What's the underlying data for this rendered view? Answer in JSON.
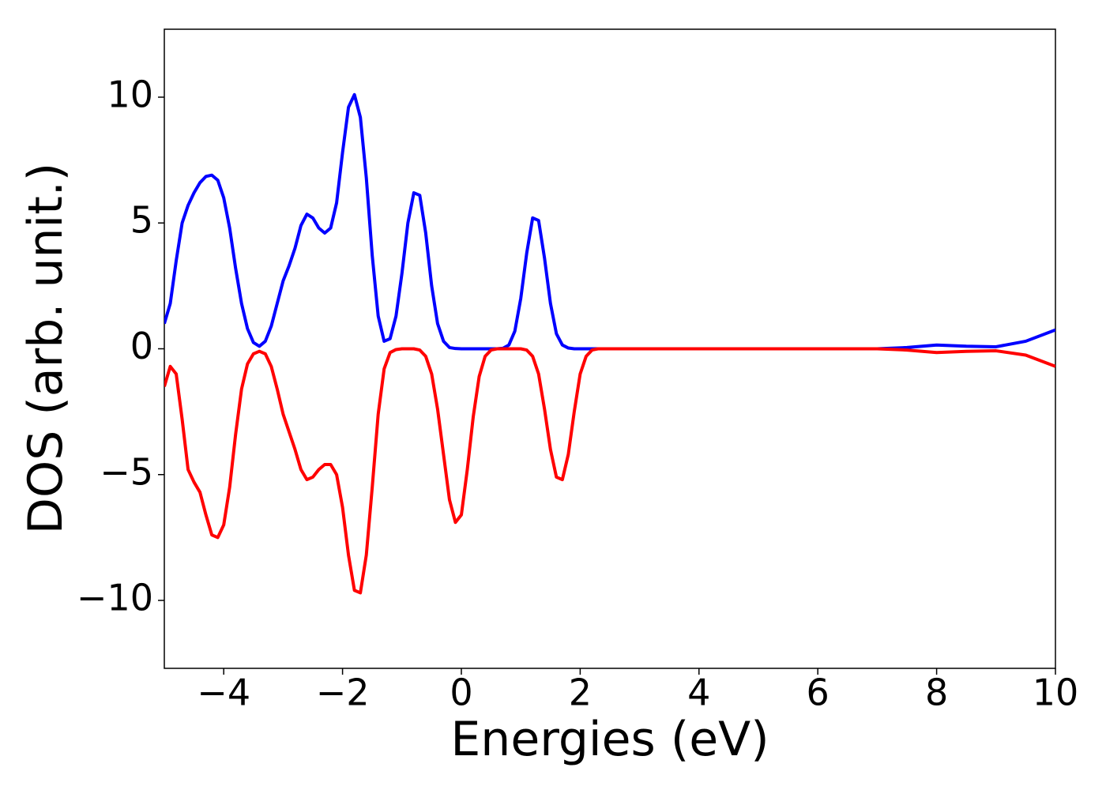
{
  "chart_data": {
    "type": "line",
    "xlabel": "Energies (eV)",
    "ylabel": "DOS (arb. unit.)",
    "x": [
      -5,
      -4.9,
      -4.8,
      -4.7,
      -4.6,
      -4.5,
      -4.4,
      -4.3,
      -4.2,
      -4.1,
      -4,
      -3.9,
      -3.8,
      -3.7,
      -3.6,
      -3.5,
      -3.4,
      -3.3,
      -3.2,
      -3.1,
      -3,
      -2.9,
      -2.8,
      -2.7,
      -2.6,
      -2.5,
      -2.4,
      -2.3,
      -2.2,
      -2.1,
      -2,
      -1.9,
      -1.8,
      -1.7,
      -1.6,
      -1.5,
      -1.4,
      -1.3,
      -1.2,
      -1.1,
      -1,
      -0.9,
      -0.8,
      -0.7,
      -0.6,
      -0.5,
      -0.4,
      -0.3,
      -0.2,
      -0.1,
      0,
      0.1,
      0.2,
      0.3,
      0.4,
      0.5,
      0.6,
      0.7,
      0.8,
      0.9,
      1,
      1.1,
      1.2,
      1.3,
      1.4,
      1.5,
      1.6,
      1.7,
      1.8,
      1.9,
      2,
      2.1,
      2.2,
      2.3,
      2.4,
      2.5,
      3,
      3.5,
      4,
      4.5,
      5,
      5.5,
      6,
      6.5,
      7,
      7.5,
      8,
      8.5,
      9,
      9.5,
      10
    ],
    "series": [
      {
        "color": "#0000ff",
        "values": [
          1.0,
          1.8,
          3.5,
          5.0,
          5.7,
          6.2,
          6.6,
          6.85,
          6.9,
          6.7,
          6.0,
          4.8,
          3.2,
          1.8,
          0.8,
          0.25,
          0.1,
          0.3,
          0.9,
          1.8,
          2.7,
          3.3,
          4.0,
          4.9,
          5.35,
          5.2,
          4.8,
          4.6,
          4.8,
          5.8,
          7.8,
          9.6,
          10.1,
          9.2,
          6.8,
          3.7,
          1.3,
          0.3,
          0.4,
          1.3,
          3.0,
          5.0,
          6.2,
          6.1,
          4.6,
          2.5,
          1.0,
          0.3,
          0.05,
          0.01,
          0,
          0,
          0,
          0,
          0,
          0,
          0,
          0.02,
          0.15,
          0.7,
          2.0,
          3.8,
          5.2,
          5.1,
          3.6,
          1.8,
          0.6,
          0.15,
          0.03,
          0,
          0,
          0,
          0,
          0,
          0,
          0,
          0,
          0,
          0,
          0,
          0,
          0,
          0,
          0,
          0,
          0.05,
          0.15,
          0.1,
          0.08,
          0.3,
          0.75
        ]
      },
      {
        "color": "#ff0000",
        "values": [
          -1.5,
          -0.7,
          -1.0,
          -2.8,
          -4.8,
          -5.3,
          -5.7,
          -6.6,
          -7.4,
          -7.5,
          -7.0,
          -5.5,
          -3.4,
          -1.6,
          -0.6,
          -0.2,
          -0.1,
          -0.2,
          -0.7,
          -1.6,
          -2.6,
          -3.3,
          -4.0,
          -4.8,
          -5.2,
          -5.1,
          -4.8,
          -4.6,
          -4.6,
          -5.0,
          -6.3,
          -8.2,
          -9.6,
          -9.7,
          -8.2,
          -5.5,
          -2.6,
          -0.8,
          -0.15,
          -0.03,
          0,
          0,
          0,
          -0.05,
          -0.3,
          -1.0,
          -2.4,
          -4.2,
          -6.0,
          -6.9,
          -6.6,
          -4.8,
          -2.7,
          -1.1,
          -0.3,
          -0.05,
          0,
          0,
          0,
          0,
          0,
          -0.05,
          -0.3,
          -1.0,
          -2.4,
          -4.0,
          -5.1,
          -5.2,
          -4.2,
          -2.5,
          -1.0,
          -0.3,
          -0.05,
          0,
          0,
          0,
          0,
          0,
          0,
          0,
          0,
          0,
          0,
          0,
          0,
          -0.05,
          -0.15,
          -0.1,
          -0.08,
          -0.25,
          -0.7
        ]
      }
    ],
    "xlim": [
      -5,
      10
    ],
    "xticks": [
      {
        "value": -4,
        "label": "−4"
      },
      {
        "value": -2,
        "label": "−2"
      },
      0,
      2,
      4,
      6,
      8,
      10
    ],
    "ylim": [
      -12.7,
      12.7
    ],
    "yticks": [
      {
        "value": -10,
        "label": "−10"
      },
      {
        "value": -5,
        "label": "−5"
      },
      0,
      5,
      10
    ],
    "grid": false
  }
}
